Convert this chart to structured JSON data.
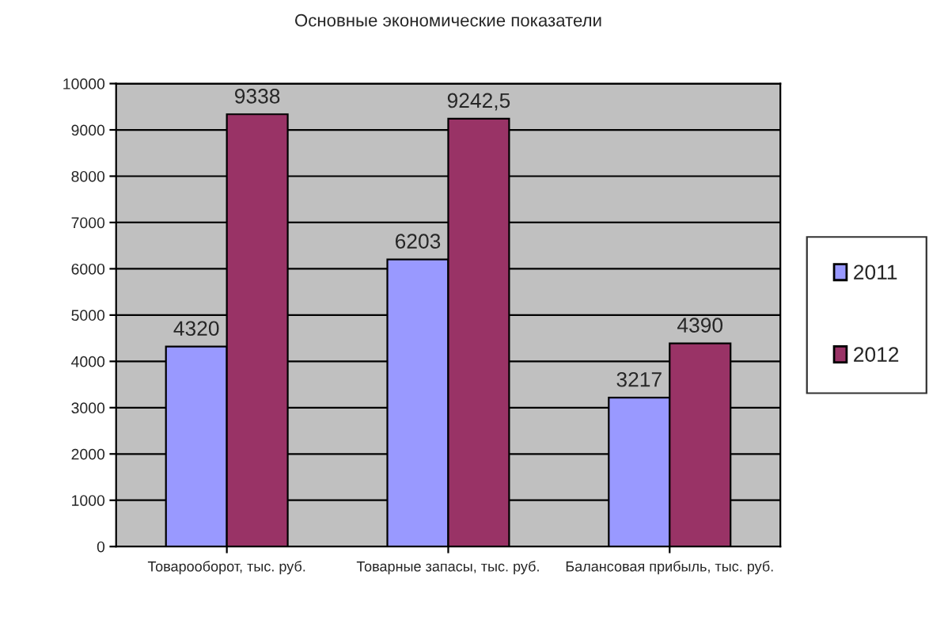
{
  "chart_data": {
    "type": "bar",
    "title": "Основные экономические показатели",
    "categories": [
      "Товарооборот, тыс. руб.",
      "Товарные запасы, тыс. руб.",
      "Балансовая прибыль, тыс. руб."
    ],
    "series": [
      {
        "name": "2011",
        "color": "#9999ff",
        "values": [
          4320,
          6203,
          3217
        ],
        "value_labels": [
          "4320",
          "6203",
          "3217"
        ]
      },
      {
        "name": "2012",
        "color": "#993366",
        "values": [
          9338,
          9242.5,
          4390
        ],
        "value_labels": [
          "9338",
          "9242,5",
          "4390"
        ]
      }
    ],
    "ylim": [
      0,
      10000
    ],
    "yticks": [
      0,
      1000,
      2000,
      3000,
      4000,
      5000,
      6000,
      7000,
      8000,
      9000,
      10000
    ],
    "grid": "y",
    "legend": "right"
  }
}
